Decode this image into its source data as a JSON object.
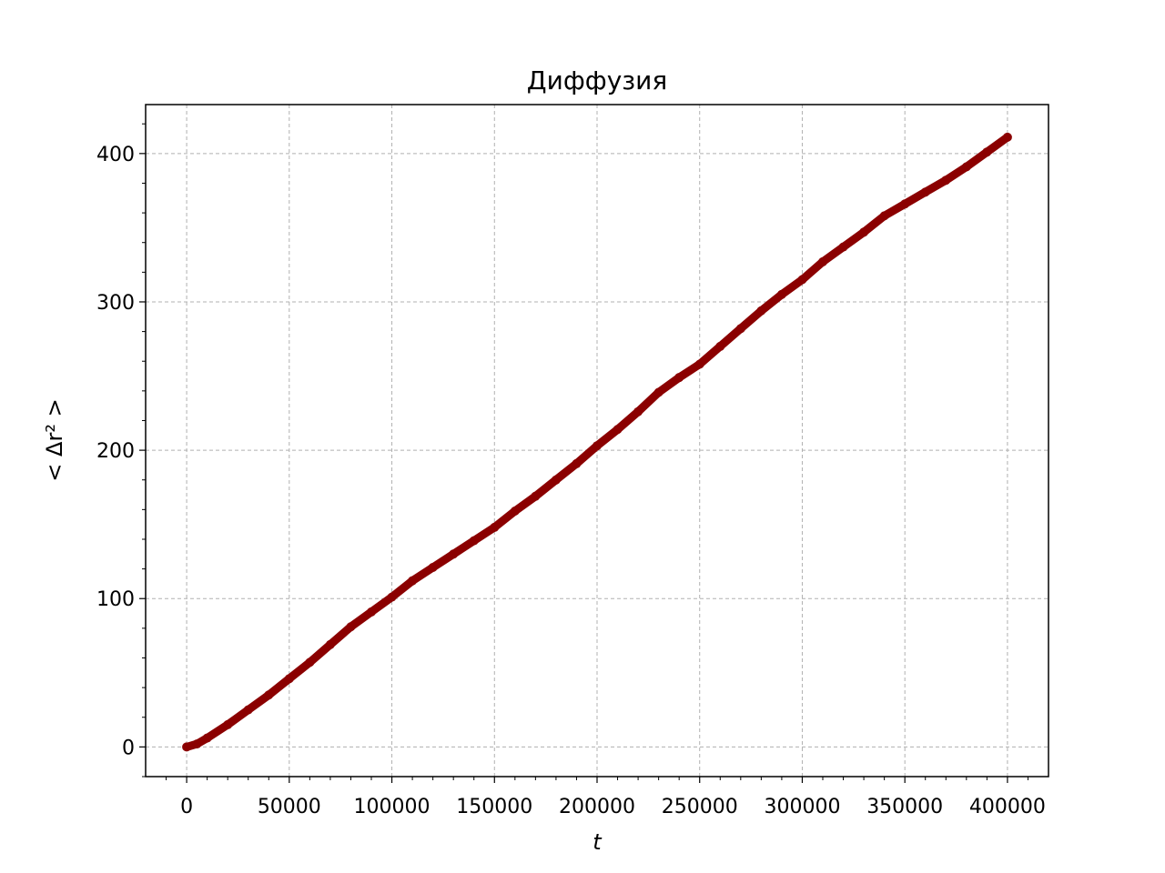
{
  "chart_data": {
    "type": "line",
    "title": "Диффузия",
    "xlabel": "t",
    "ylabel": "< Δr² >",
    "xlim": [
      -20000,
      420000
    ],
    "ylim": [
      -20,
      433
    ],
    "xticks": [
      0,
      50000,
      100000,
      150000,
      200000,
      250000,
      300000,
      350000,
      400000
    ],
    "xtick_labels": [
      "0",
      "50000",
      "100000",
      "150000",
      "200000",
      "250000",
      "300000",
      "350000",
      "400000"
    ],
    "yticks": [
      0,
      100,
      200,
      300,
      400
    ],
    "ytick_labels": [
      "0",
      "100",
      "200",
      "300",
      "400"
    ],
    "grid": true,
    "series": [
      {
        "color": "#8b0000",
        "x": [
          0,
          5000,
          10000,
          20000,
          30000,
          40000,
          50000,
          60000,
          70000,
          80000,
          90000,
          100000,
          110000,
          120000,
          130000,
          140000,
          150000,
          160000,
          170000,
          180000,
          190000,
          200000,
          210000,
          220000,
          230000,
          240000,
          250000,
          260000,
          270000,
          280000,
          290000,
          300000,
          310000,
          320000,
          330000,
          340000,
          350000,
          360000,
          370000,
          380000,
          390000,
          400000
        ],
        "y": [
          0,
          2,
          6,
          15,
          25,
          35,
          46,
          57,
          69,
          81,
          91,
          101,
          112,
          121,
          130,
          139,
          148,
          159,
          169,
          180,
          191,
          203,
          214,
          226,
          239,
          249,
          258,
          270,
          282,
          294,
          305,
          315,
          327,
          337,
          347,
          358,
          366,
          374,
          382,
          391,
          401,
          411
        ]
      }
    ]
  }
}
